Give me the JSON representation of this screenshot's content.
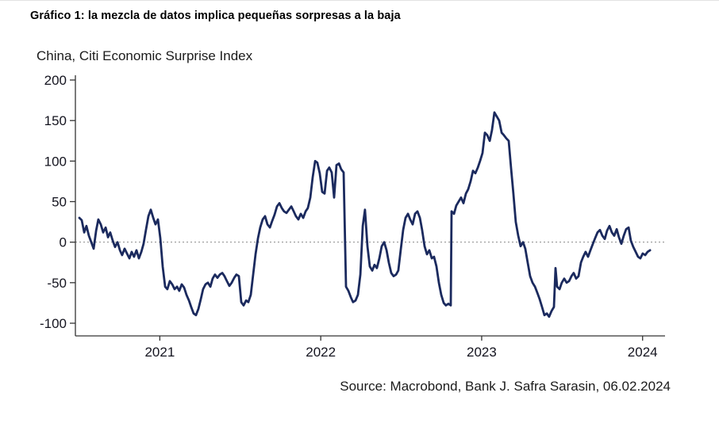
{
  "figure": {
    "title": "Gráfico 1: la mezcla de datos implica pequeñas sorpresas a la baja",
    "subtitle": "China, Citi Economic Surprise Index",
    "source": "Source: Macrobond, Bank J. Safra Sarasin, 06.02.2024"
  },
  "chart_data": {
    "type": "line",
    "title": "China, Citi Economic Surprise Index",
    "xlabel": "",
    "ylabel": "",
    "xlim": [
      2020.5,
      2024.1
    ],
    "ylim": [
      -100,
      200
    ],
    "y_ticks": [
      200,
      150,
      100,
      50,
      0,
      -50,
      -100
    ],
    "x_ticks": [
      {
        "v": 2021,
        "label": "2021"
      },
      {
        "v": 2022,
        "label": "2022"
      },
      {
        "v": 2023,
        "label": "2023"
      },
      {
        "v": 2024,
        "label": "2024"
      }
    ],
    "grid": "off",
    "legend": "none",
    "zero_reference_line": true,
    "colors": {
      "line": "#1b2a5e",
      "axis": "#333333",
      "zero_line": "#8a8a8a",
      "tick_label": "#14141f"
    },
    "series": [
      {
        "name": "China, Citi Economic Surprise Index",
        "points": [
          [
            2020.5,
            30
          ],
          [
            2020.515,
            27
          ],
          [
            2020.53,
            12
          ],
          [
            2020.544,
            20
          ],
          [
            2020.559,
            8
          ],
          [
            2020.574,
            0
          ],
          [
            2020.589,
            -8
          ],
          [
            2020.604,
            14
          ],
          [
            2020.618,
            28
          ],
          [
            2020.633,
            22
          ],
          [
            2020.648,
            12
          ],
          [
            2020.663,
            18
          ],
          [
            2020.678,
            6
          ],
          [
            2020.692,
            12
          ],
          [
            2020.707,
            2
          ],
          [
            2020.722,
            -6
          ],
          [
            2020.737,
            0
          ],
          [
            2020.752,
            -10
          ],
          [
            2020.766,
            -16
          ],
          [
            2020.781,
            -8
          ],
          [
            2020.796,
            -14
          ],
          [
            2020.811,
            -20
          ],
          [
            2020.825,
            -12
          ],
          [
            2020.84,
            -18
          ],
          [
            2020.855,
            -10
          ],
          [
            2020.87,
            -20
          ],
          [
            2020.885,
            -12
          ],
          [
            2020.899,
            -2
          ],
          [
            2020.914,
            15
          ],
          [
            2020.929,
            32
          ],
          [
            2020.944,
            40
          ],
          [
            2020.959,
            30
          ],
          [
            2020.973,
            22
          ],
          [
            2020.988,
            28
          ],
          [
            2021.003,
            5
          ],
          [
            2021.018,
            -30
          ],
          [
            2021.033,
            -55
          ],
          [
            2021.047,
            -58
          ],
          [
            2021.062,
            -48
          ],
          [
            2021.077,
            -52
          ],
          [
            2021.092,
            -58
          ],
          [
            2021.107,
            -55
          ],
          [
            2021.121,
            -60
          ],
          [
            2021.136,
            -52
          ],
          [
            2021.151,
            -56
          ],
          [
            2021.166,
            -65
          ],
          [
            2021.181,
            -72
          ],
          [
            2021.195,
            -80
          ],
          [
            2021.21,
            -88
          ],
          [
            2021.225,
            -90
          ],
          [
            2021.24,
            -82
          ],
          [
            2021.255,
            -70
          ],
          [
            2021.269,
            -58
          ],
          [
            2021.284,
            -52
          ],
          [
            2021.299,
            -50
          ],
          [
            2021.314,
            -55
          ],
          [
            2021.328,
            -45
          ],
          [
            2021.343,
            -40
          ],
          [
            2021.358,
            -44
          ],
          [
            2021.373,
            -40
          ],
          [
            2021.388,
            -38
          ],
          [
            2021.402,
            -42
          ],
          [
            2021.417,
            -48
          ],
          [
            2021.432,
            -54
          ],
          [
            2021.447,
            -50
          ],
          [
            2021.462,
            -44
          ],
          [
            2021.476,
            -40
          ],
          [
            2021.491,
            -42
          ],
          [
            2021.506,
            -74
          ],
          [
            2021.521,
            -78
          ],
          [
            2021.536,
            -72
          ],
          [
            2021.55,
            -74
          ],
          [
            2021.565,
            -65
          ],
          [
            2021.58,
            -40
          ],
          [
            2021.595,
            -15
          ],
          [
            2021.61,
            5
          ],
          [
            2021.624,
            18
          ],
          [
            2021.639,
            28
          ],
          [
            2021.654,
            32
          ],
          [
            2021.669,
            22
          ],
          [
            2021.684,
            18
          ],
          [
            2021.698,
            26
          ],
          [
            2021.713,
            34
          ],
          [
            2021.728,
            44
          ],
          [
            2021.743,
            48
          ],
          [
            2021.758,
            42
          ],
          [
            2021.772,
            38
          ],
          [
            2021.787,
            36
          ],
          [
            2021.802,
            40
          ],
          [
            2021.817,
            44
          ],
          [
            2021.832,
            38
          ],
          [
            2021.846,
            32
          ],
          [
            2021.861,
            28
          ],
          [
            2021.876,
            35
          ],
          [
            2021.891,
            30
          ],
          [
            2021.906,
            38
          ],
          [
            2021.92,
            42
          ],
          [
            2021.935,
            55
          ],
          [
            2021.95,
            80
          ],
          [
            2021.965,
            100
          ],
          [
            2021.979,
            98
          ],
          [
            2021.994,
            85
          ],
          [
            2022.009,
            62
          ],
          [
            2022.024,
            60
          ],
          [
            2022.039,
            88
          ],
          [
            2022.053,
            92
          ],
          [
            2022.068,
            86
          ],
          [
            2022.083,
            55
          ],
          [
            2022.098,
            95
          ],
          [
            2022.113,
            97
          ],
          [
            2022.127,
            90
          ],
          [
            2022.142,
            86
          ],
          [
            2022.157,
            -55
          ],
          [
            2022.172,
            -60
          ],
          [
            2022.187,
            -68
          ],
          [
            2022.201,
            -74
          ],
          [
            2022.216,
            -72
          ],
          [
            2022.231,
            -65
          ],
          [
            2022.246,
            -40
          ],
          [
            2022.261,
            20
          ],
          [
            2022.275,
            40
          ],
          [
            2022.29,
            -5
          ],
          [
            2022.305,
            -30
          ],
          [
            2022.32,
            -35
          ],
          [
            2022.334,
            -28
          ],
          [
            2022.349,
            -32
          ],
          [
            2022.364,
            -20
          ],
          [
            2022.379,
            -5
          ],
          [
            2022.394,
            0
          ],
          [
            2022.409,
            -10
          ],
          [
            2022.423,
            -25
          ],
          [
            2022.438,
            -38
          ],
          [
            2022.453,
            -42
          ],
          [
            2022.468,
            -40
          ],
          [
            2022.482,
            -35
          ],
          [
            2022.497,
            -10
          ],
          [
            2022.512,
            15
          ],
          [
            2022.527,
            30
          ],
          [
            2022.542,
            35
          ],
          [
            2022.556,
            28
          ],
          [
            2022.571,
            22
          ],
          [
            2022.586,
            35
          ],
          [
            2022.601,
            38
          ],
          [
            2022.616,
            30
          ],
          [
            2022.63,
            15
          ],
          [
            2022.645,
            -5
          ],
          [
            2022.66,
            -15
          ],
          [
            2022.675,
            -10
          ],
          [
            2022.69,
            -20
          ],
          [
            2022.704,
            -18
          ],
          [
            2022.719,
            -30
          ],
          [
            2022.734,
            -50
          ],
          [
            2022.749,
            -65
          ],
          [
            2022.764,
            -75
          ],
          [
            2022.778,
            -78
          ],
          [
            2022.793,
            -76
          ],
          [
            2022.808,
            -78
          ],
          [
            2022.813,
            38
          ],
          [
            2022.828,
            35
          ],
          [
            2022.842,
            45
          ],
          [
            2022.857,
            50
          ],
          [
            2022.872,
            55
          ],
          [
            2022.887,
            48
          ],
          [
            2022.902,
            60
          ],
          [
            2022.916,
            65
          ],
          [
            2022.931,
            75
          ],
          [
            2022.946,
            88
          ],
          [
            2022.961,
            85
          ],
          [
            2022.976,
            92
          ],
          [
            2022.99,
            100
          ],
          [
            2023.005,
            110
          ],
          [
            2023.02,
            135
          ],
          [
            2023.035,
            132
          ],
          [
            2023.05,
            125
          ],
          [
            2023.064,
            138
          ],
          [
            2023.079,
            160
          ],
          [
            2023.094,
            155
          ],
          [
            2023.109,
            150
          ],
          [
            2023.124,
            135
          ],
          [
            2023.138,
            132
          ],
          [
            2023.153,
            128
          ],
          [
            2023.168,
            125
          ],
          [
            2023.183,
            90
          ],
          [
            2023.197,
            60
          ],
          [
            2023.212,
            25
          ],
          [
            2023.227,
            8
          ],
          [
            2023.242,
            -5
          ],
          [
            2023.257,
            0
          ],
          [
            2023.271,
            -8
          ],
          [
            2023.286,
            -25
          ],
          [
            2023.301,
            -42
          ],
          [
            2023.316,
            -50
          ],
          [
            2023.331,
            -55
          ],
          [
            2023.345,
            -62
          ],
          [
            2023.36,
            -70
          ],
          [
            2023.375,
            -80
          ],
          [
            2023.39,
            -90
          ],
          [
            2023.405,
            -88
          ],
          [
            2023.419,
            -92
          ],
          [
            2023.434,
            -85
          ],
          [
            2023.449,
            -80
          ],
          [
            2023.459,
            -32
          ],
          [
            2023.469,
            -55
          ],
          [
            2023.484,
            -58
          ],
          [
            2023.498,
            -50
          ],
          [
            2023.513,
            -45
          ],
          [
            2023.528,
            -50
          ],
          [
            2023.543,
            -48
          ],
          [
            2023.558,
            -42
          ],
          [
            2023.572,
            -38
          ],
          [
            2023.587,
            -45
          ],
          [
            2023.602,
            -42
          ],
          [
            2023.617,
            -25
          ],
          [
            2023.631,
            -18
          ],
          [
            2023.646,
            -12
          ],
          [
            2023.661,
            -18
          ],
          [
            2023.676,
            -10
          ],
          [
            2023.691,
            -2
          ],
          [
            2023.705,
            5
          ],
          [
            2023.72,
            12
          ],
          [
            2023.735,
            15
          ],
          [
            2023.75,
            8
          ],
          [
            2023.765,
            4
          ],
          [
            2023.779,
            14
          ],
          [
            2023.794,
            20
          ],
          [
            2023.809,
            12
          ],
          [
            2023.824,
            8
          ],
          [
            2023.839,
            16
          ],
          [
            2023.853,
            6
          ],
          [
            2023.868,
            -2
          ],
          [
            2023.883,
            8
          ],
          [
            2023.898,
            16
          ],
          [
            2023.913,
            18
          ],
          [
            2023.927,
            2
          ],
          [
            2023.942,
            -6
          ],
          [
            2023.957,
            -12
          ],
          [
            2023.972,
            -18
          ],
          [
            2023.986,
            -20
          ],
          [
            2024.001,
            -14
          ],
          [
            2024.016,
            -16
          ],
          [
            2024.031,
            -12
          ],
          [
            2024.046,
            -10
          ]
        ]
      }
    ]
  }
}
